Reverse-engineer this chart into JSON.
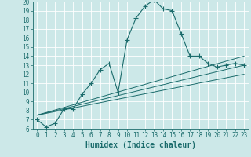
{
  "xlabel": "Humidex (Indice chaleur)",
  "background_color": "#cce8e8",
  "line_color": "#1a6b6b",
  "xlim": [
    -0.5,
    23.5
  ],
  "ylim": [
    6,
    20
  ],
  "xticks": [
    0,
    1,
    2,
    3,
    4,
    5,
    6,
    7,
    8,
    9,
    10,
    11,
    12,
    13,
    14,
    15,
    16,
    17,
    18,
    19,
    20,
    21,
    22,
    23
  ],
  "yticks": [
    6,
    7,
    8,
    9,
    10,
    11,
    12,
    13,
    14,
    15,
    16,
    17,
    18,
    19,
    20
  ],
  "main_x": [
    0,
    1,
    2,
    3,
    4,
    5,
    6,
    7,
    8,
    9,
    10,
    11,
    12,
    13,
    14,
    15,
    16,
    17,
    18,
    19,
    20,
    21,
    22,
    23
  ],
  "main_y": [
    7.0,
    6.2,
    6.6,
    8.2,
    8.2,
    9.8,
    11.0,
    12.5,
    13.2,
    10.0,
    15.8,
    18.2,
    19.5,
    20.2,
    19.2,
    19.0,
    16.5,
    14.0,
    14.0,
    13.2,
    12.8,
    13.0,
    13.2,
    13.0
  ],
  "line2_x": [
    0,
    23
  ],
  "line2_y": [
    7.5,
    14.0
  ],
  "line3_x": [
    0,
    23
  ],
  "line3_y": [
    7.5,
    13.0
  ],
  "line4_x": [
    0,
    23
  ],
  "line4_y": [
    7.5,
    12.0
  ],
  "grid_color": "#ffffff",
  "marker_size": 4,
  "font_color": "#1a6b6b",
  "xlabel_fontsize": 7,
  "tick_fontsize": 5.5
}
